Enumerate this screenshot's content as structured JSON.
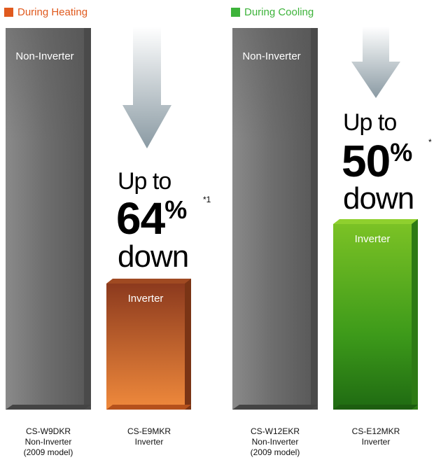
{
  "legend": {
    "heating": {
      "label": "During Heating",
      "color": "#e05a1e"
    },
    "cooling": {
      "label": "During Cooling",
      "color": "#3db33a"
    }
  },
  "chart_data": [
    {
      "type": "bar",
      "title": "During Heating",
      "categories": [
        "CS-W9DKR Non-Inverter (2009 model)",
        "CS-E9MKR Inverter"
      ],
      "values": [
        100,
        36
      ],
      "bar_labels": [
        "Non-Inverter",
        "Inverter"
      ],
      "colors": [
        "#6f6f6f",
        "#b8542a"
      ],
      "annotation": {
        "line1": "Up to",
        "value": "64",
        "percent": "%",
        "note": "*1",
        "line3": "down"
      },
      "ylim": [
        0,
        100
      ]
    },
    {
      "type": "bar",
      "title": "During Cooling",
      "categories": [
        "CS-W12EKR Non-Inverter (2009 model)",
        "CS-E12MKR Inverter"
      ],
      "values": [
        100,
        50
      ],
      "bar_labels": [
        "Non-Inverter",
        "Inverter"
      ],
      "colors": [
        "#6f6f6f",
        "#55a11e"
      ],
      "annotation": {
        "line1": "Up to",
        "value": "50",
        "percent": "%",
        "note": "*",
        "line3": "down"
      },
      "ylim": [
        0,
        100
      ]
    }
  ],
  "categories_text": {
    "h0": [
      "CS-W9DKR",
      "Non-Inverter",
      "(2009 model)"
    ],
    "h1": [
      "CS-E9MKR",
      "Inverter"
    ],
    "c0": [
      "CS-W12EKR",
      "Non-Inverter",
      "(2009 model)"
    ],
    "c1": [
      "CS-E12MKR",
      "Inverter"
    ]
  }
}
